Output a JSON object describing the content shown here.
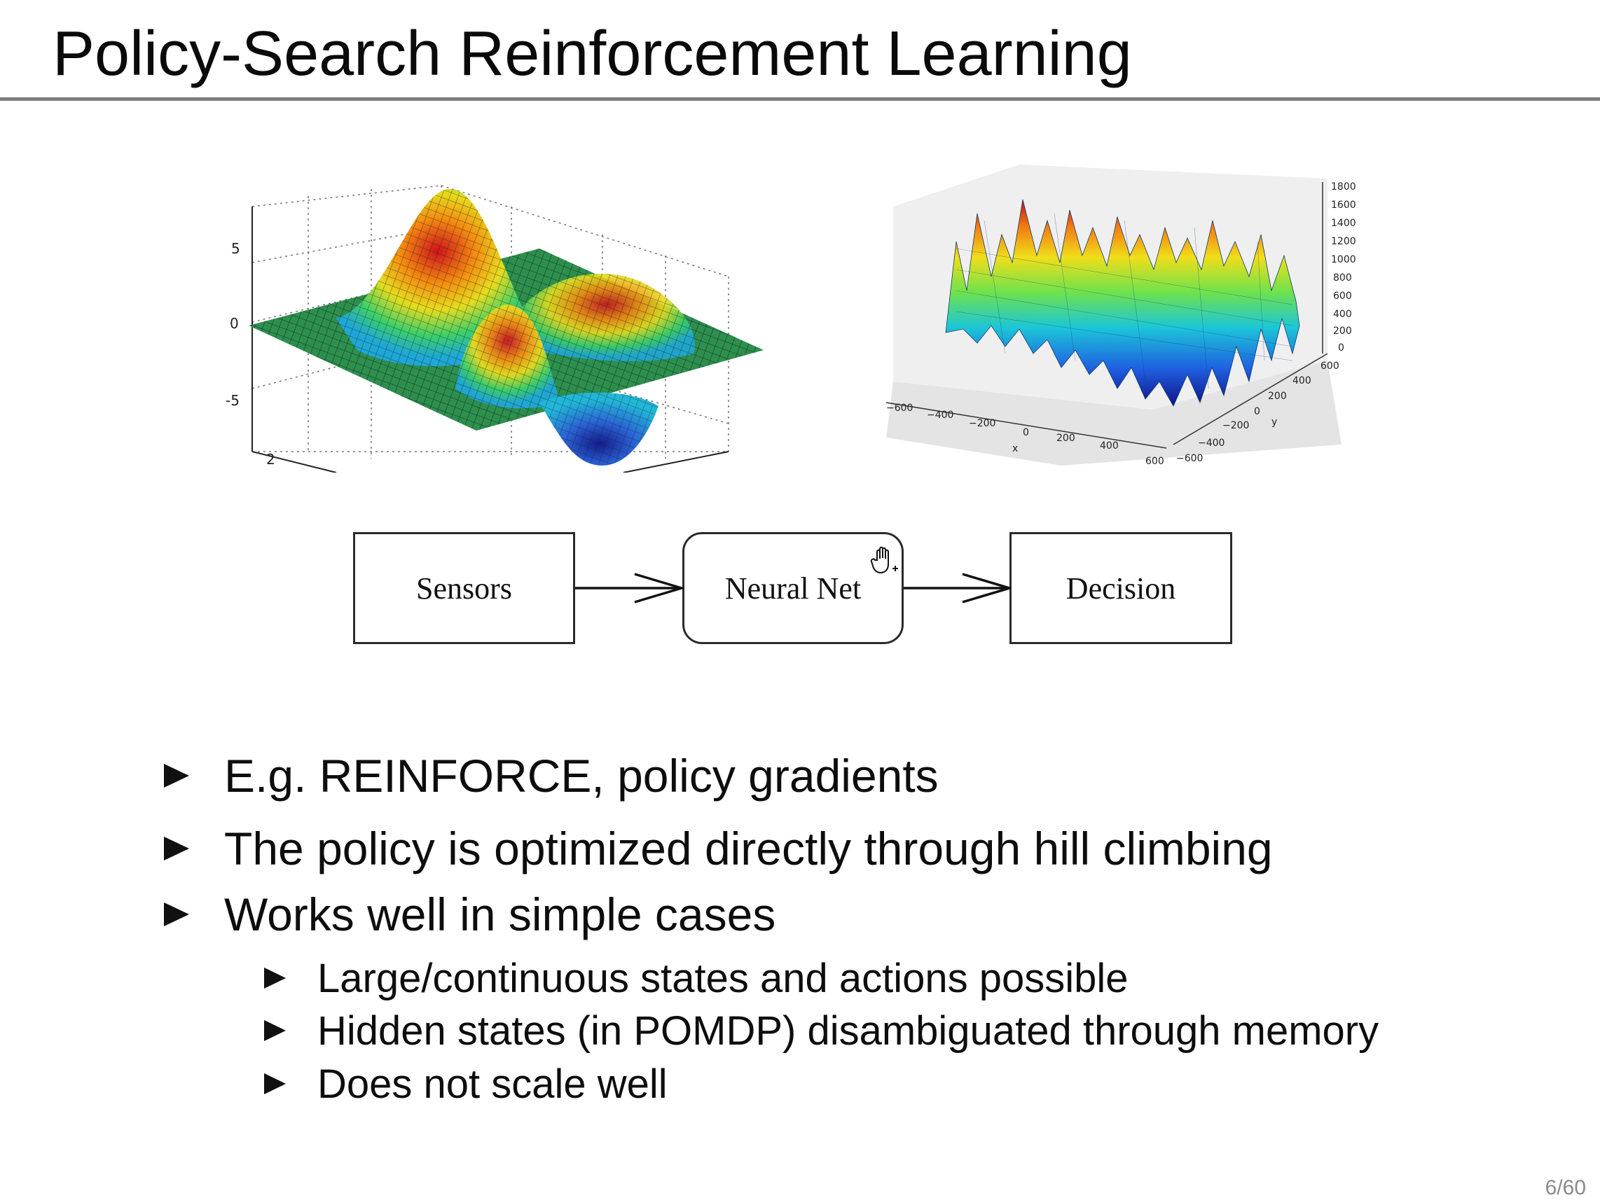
{
  "slide": {
    "title": "Policy-Search Reinforcement Learning",
    "page_number": "6/60"
  },
  "left_plot": {
    "z_ticks": [
      "5",
      "0",
      "-5"
    ],
    "x_tick": "2"
  },
  "right_plot": {
    "z_ticks": [
      "1800",
      "1600",
      "1400",
      "1200",
      "1000",
      "800",
      "600",
      "400",
      "200",
      "0"
    ],
    "x_ticks": [
      "−600",
      "−400",
      "−200",
      "0",
      "200",
      "400",
      "600"
    ],
    "y_ticks": [
      "600",
      "400",
      "200",
      "0",
      "−200",
      "−400",
      "−600"
    ],
    "x_label": "x",
    "y_label": "y"
  },
  "flow": {
    "boxes": [
      "Sensors",
      "Neural Net",
      "Decision"
    ]
  },
  "bullets": [
    "E.g. REINFORCE, policy gradients",
    "The policy is optimized directly through hill climbing",
    "Works well in simple cases"
  ],
  "sub_bullets": [
    "Large/continuous states and actions possible",
    "Hidden states (in POMDP) disambiguated through memory",
    "Does not scale well"
  ],
  "icons": {
    "bullet_marker": "triangle-right-icon",
    "cursor": "hand-cursor-icon"
  }
}
